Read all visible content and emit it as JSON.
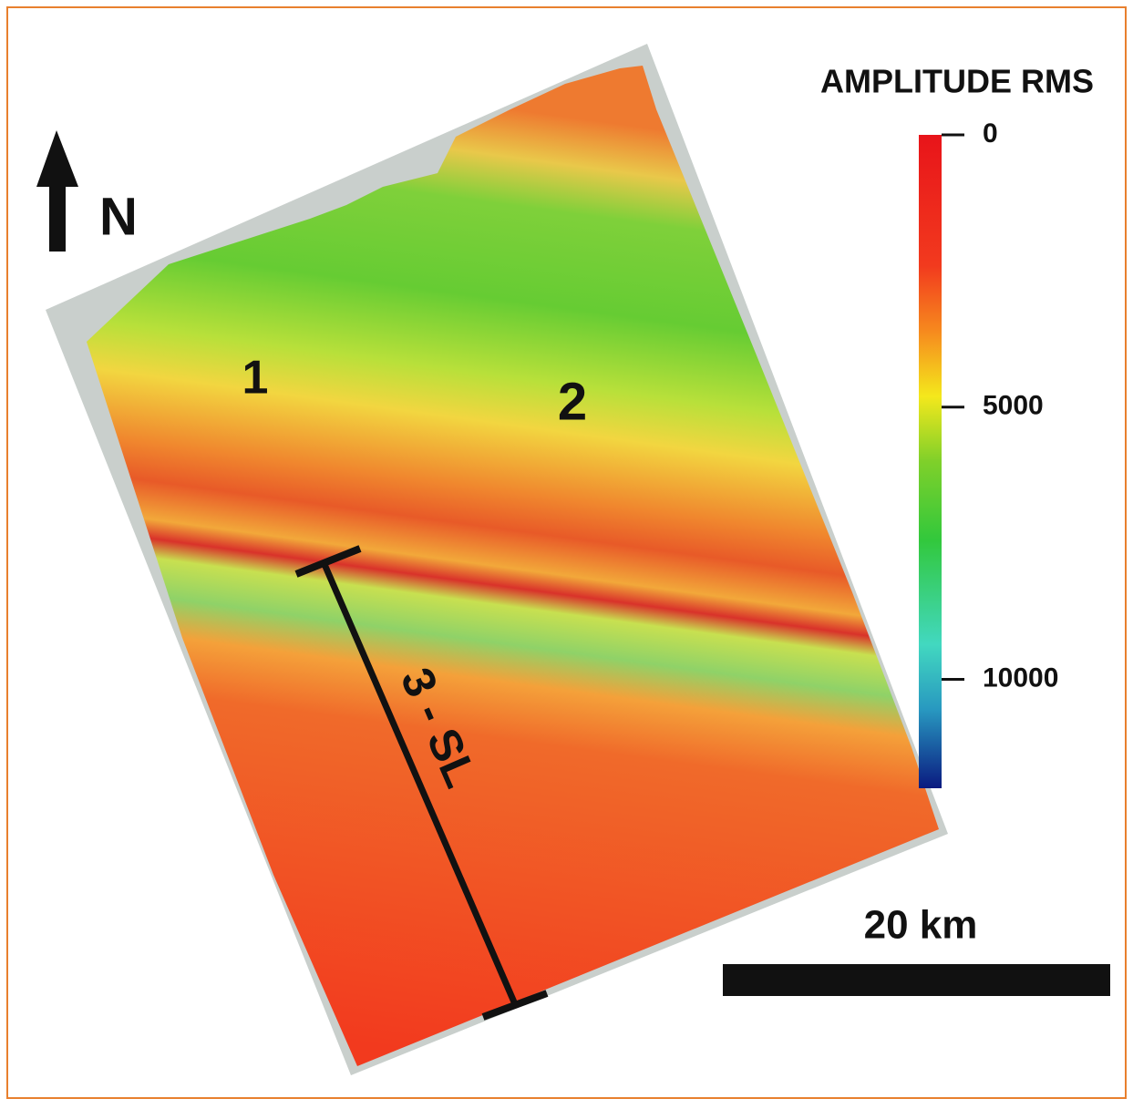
{
  "legend": {
    "title": "AMPLITUDE RMS",
    "range": [
      0,
      12000
    ],
    "ticks": [
      0,
      5000,
      10000
    ]
  },
  "north_label": "N",
  "zone_labels": [
    "1",
    "2"
  ],
  "section_label": "3 - SL",
  "scale_bar": "20 km"
}
